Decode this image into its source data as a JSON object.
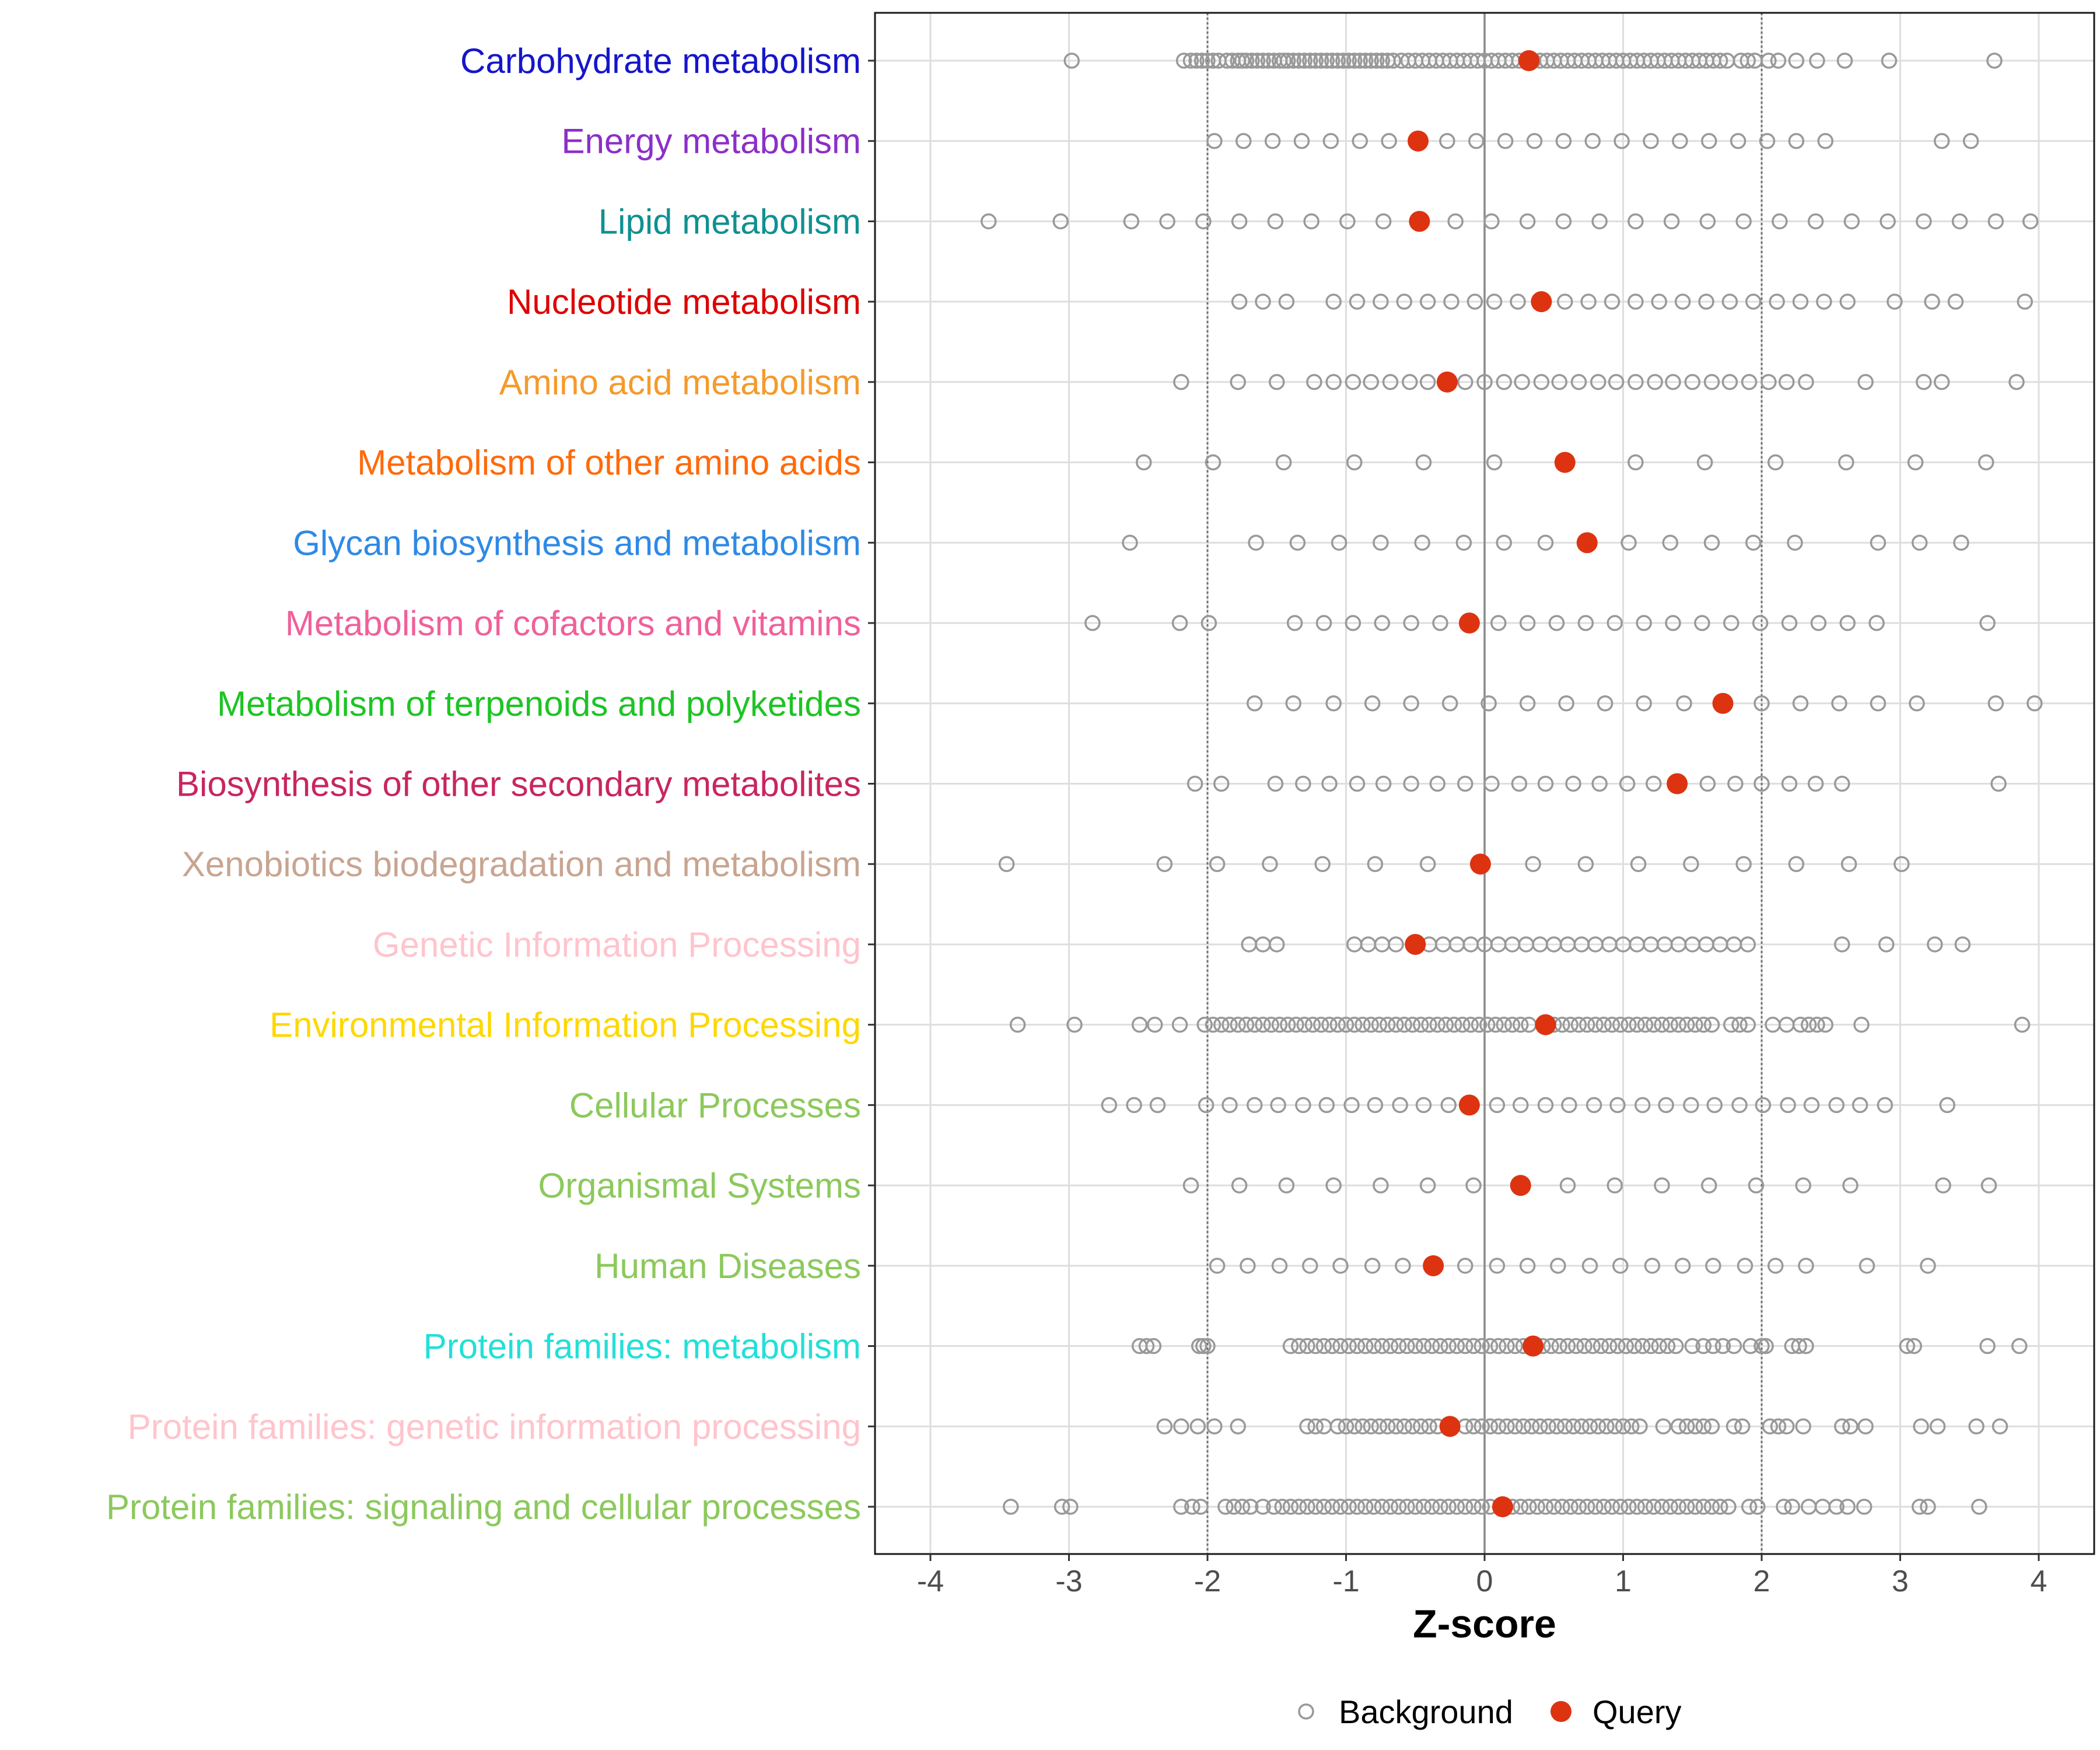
{
  "chart_data": {
    "type": "scatter",
    "xlabel": "Z-score",
    "xlim": [
      -4.4,
      4.4
    ],
    "xticks": [
      -4,
      -3,
      -2,
      -1,
      0,
      1,
      2,
      3,
      4
    ],
    "xtick_labels": [
      "-4",
      "-3",
      "-2",
      "-1",
      "0",
      "1",
      "2",
      "3",
      "4"
    ],
    "reference_lines": [
      {
        "x": -2,
        "style": "dotted"
      },
      {
        "x": 0,
        "style": "solid"
      },
      {
        "x": 2,
        "style": "dotted"
      }
    ],
    "grid": true,
    "legend": {
      "placement": "bottom",
      "entries": [
        {
          "name": "Background",
          "marker": "open-circle",
          "color": "#999999"
        },
        {
          "name": "Query",
          "marker": "filled-circle",
          "color": "#dd3311"
        }
      ]
    },
    "categories": [
      {
        "label": "Carbohydrate metabolism",
        "color": "#1515cc",
        "query": 0.32,
        "background_values": [
          -2.98,
          -2.17,
          -2.12,
          -2.08,
          -2.04,
          -2.0,
          -1.96,
          -1.92,
          -1.86,
          -1.82,
          -1.78,
          -1.75,
          -1.72,
          -1.68,
          -1.64,
          -1.6,
          -1.56,
          -1.52,
          -1.48,
          -1.45,
          -1.42,
          -1.38,
          -1.34,
          -1.3,
          -1.26,
          -1.22,
          -1.18,
          -1.14,
          -1.1,
          -1.06,
          -1.02,
          -0.98,
          -0.94,
          -0.9,
          -0.86,
          -0.82,
          -0.78,
          -0.74,
          -0.7,
          -0.66,
          -0.6,
          -0.55,
          -0.5,
          -0.45,
          -0.4,
          -0.35,
          -0.3,
          -0.25,
          -0.2,
          -0.15,
          -0.1,
          -0.05,
          0.0,
          0.05,
          0.1,
          0.15,
          0.2,
          0.25,
          0.3,
          0.35,
          0.4,
          0.45,
          0.5,
          0.55,
          0.6,
          0.65,
          0.7,
          0.75,
          0.8,
          0.85,
          0.9,
          0.95,
          1.0,
          1.05,
          1.1,
          1.15,
          1.2,
          1.25,
          1.3,
          1.35,
          1.4,
          1.45,
          1.5,
          1.55,
          1.6,
          1.65,
          1.7,
          1.75,
          1.85,
          1.9,
          1.95,
          2.05,
          2.12,
          2.25,
          2.4,
          2.6,
          2.92,
          3.68
        ]
      },
      {
        "label": "Energy metabolism",
        "color": "#8b2fc9",
        "query": -0.48,
        "background_values": [
          -1.95,
          -1.74,
          -1.53,
          -1.32,
          -1.11,
          -0.9,
          -0.69,
          -0.27,
          -0.06,
          0.15,
          0.36,
          0.57,
          0.78,
          0.99,
          1.2,
          1.41,
          1.62,
          1.83,
          2.04,
          2.25,
          2.46,
          3.3,
          3.51
        ]
      },
      {
        "label": "Lipid metabolism",
        "color": "#109090",
        "query": -0.47,
        "background_values": [
          -3.58,
          -3.06,
          -2.55,
          -2.29,
          -2.03,
          -1.77,
          -1.51,
          -1.25,
          -0.99,
          -0.73,
          -0.21,
          0.05,
          0.31,
          0.57,
          0.83,
          1.09,
          1.35,
          1.61,
          1.87,
          2.13,
          2.39,
          2.65,
          2.91,
          3.17,
          3.43,
          3.69,
          3.94
        ]
      },
      {
        "label": "Nucleotide metabolism",
        "color": "#dd0000",
        "query": 0.41,
        "background_values": [
          -1.77,
          -1.6,
          -1.43,
          -1.09,
          -0.92,
          -0.75,
          -0.58,
          -0.41,
          -0.24,
          -0.07,
          0.07,
          0.24,
          0.58,
          0.75,
          0.92,
          1.09,
          1.26,
          1.43,
          1.6,
          1.77,
          1.94,
          2.11,
          2.28,
          2.45,
          2.62,
          2.96,
          3.23,
          3.4,
          3.9
        ]
      },
      {
        "label": "Amino acid metabolism",
        "color": "#f59a2b",
        "query": -0.27,
        "background_values": [
          -2.19,
          -1.78,
          -1.5,
          -1.23,
          -1.09,
          -0.95,
          -0.82,
          -0.68,
          -0.54,
          -0.41,
          -0.14,
          0.0,
          0.14,
          0.27,
          0.41,
          0.54,
          0.68,
          0.82,
          0.95,
          1.09,
          1.23,
          1.36,
          1.5,
          1.64,
          1.77,
          1.91,
          2.05,
          2.18,
          2.32,
          2.75,
          3.17,
          3.3,
          3.84
        ]
      },
      {
        "label": "Metabolism of other amino acids",
        "color": "#ff6a0a",
        "query": 0.58,
        "background_values": [
          -2.46,
          -1.96,
          -1.45,
          -0.94,
          -0.44,
          0.07,
          1.09,
          1.59,
          2.1,
          2.61,
          3.11,
          3.62
        ]
      },
      {
        "label": "Glycan biosynthesis and metabolism",
        "color": "#2e8ae6",
        "query": 0.74,
        "background_values": [
          -2.56,
          -1.65,
          -1.35,
          -1.05,
          -0.75,
          -0.45,
          -0.15,
          0.14,
          0.44,
          1.04,
          1.34,
          1.64,
          1.94,
          2.24,
          2.84,
          3.14,
          3.44
        ]
      },
      {
        "label": "Metabolism of cofactors and vitamins",
        "color": "#f0609a",
        "query": -0.11,
        "background_values": [
          -2.83,
          -2.2,
          -1.99,
          -1.37,
          -1.16,
          -0.95,
          -0.74,
          -0.53,
          -0.32,
          0.1,
          0.31,
          0.52,
          0.73,
          0.94,
          1.15,
          1.36,
          1.57,
          1.78,
          1.99,
          2.2,
          2.41,
          2.62,
          2.83,
          3.63
        ]
      },
      {
        "label": "Metabolism of terpenoids and polyketides",
        "color": "#1dc424",
        "query": 1.72,
        "background_values": [
          -1.66,
          -1.38,
          -1.09,
          -0.81,
          -0.53,
          -0.25,
          0.03,
          0.31,
          0.59,
          0.87,
          1.15,
          1.44,
          2.0,
          2.28,
          2.56,
          2.84,
          3.12,
          3.69,
          3.97
        ]
      },
      {
        "label": "Biosynthesis of other secondary metabolites",
        "color": "#c82660",
        "query": 1.39,
        "background_values": [
          -2.09,
          -1.9,
          -1.51,
          -1.31,
          -1.12,
          -0.92,
          -0.73,
          -0.53,
          -0.34,
          -0.14,
          0.05,
          0.25,
          0.44,
          0.64,
          0.83,
          1.03,
          1.22,
          1.61,
          1.81,
          2.0,
          2.2,
          2.39,
          2.58,
          3.71
        ]
      },
      {
        "label": "Xenobiotics biodegradation and metabolism",
        "color": "#c8a591",
        "query": -0.03,
        "background_values": [
          -3.45,
          -2.31,
          -1.93,
          -1.55,
          -1.17,
          -0.79,
          -0.41,
          0.35,
          0.73,
          1.11,
          1.49,
          1.87,
          2.25,
          2.63,
          3.01
        ]
      },
      {
        "label": "Genetic Information Processing",
        "color": "#ffc4cc",
        "query": -0.5,
        "background_values": [
          -1.7,
          -1.6,
          -1.5,
          -0.94,
          -0.84,
          -0.74,
          -0.64,
          -0.4,
          -0.3,
          -0.2,
          -0.1,
          0.0,
          0.1,
          0.2,
          0.3,
          0.4,
          0.5,
          0.6,
          0.7,
          0.8,
          0.9,
          1.0,
          1.1,
          1.2,
          1.3,
          1.4,
          1.5,
          1.6,
          1.7,
          1.8,
          1.9,
          2.58,
          2.9,
          3.25,
          3.45
        ]
      },
      {
        "label": "Environmental Information Processing",
        "color": "#ffd700",
        "query": 0.44,
        "background_values": [
          -3.37,
          -2.96,
          -2.49,
          -2.38,
          -2.2,
          -2.02,
          -1.96,
          -1.9,
          -1.84,
          -1.78,
          -1.72,
          -1.66,
          -1.6,
          -1.54,
          -1.48,
          -1.42,
          -1.36,
          -1.3,
          -1.24,
          -1.18,
          -1.12,
          -1.06,
          -1.0,
          -0.94,
          -0.88,
          -0.82,
          -0.76,
          -0.7,
          -0.64,
          -0.58,
          -0.52,
          -0.46,
          -0.4,
          -0.34,
          -0.28,
          -0.22,
          -0.16,
          -0.1,
          -0.04,
          0.02,
          0.08,
          0.14,
          0.2,
          0.26,
          0.32,
          0.5,
          0.56,
          0.62,
          0.68,
          0.74,
          0.8,
          0.86,
          0.92,
          0.98,
          1.04,
          1.1,
          1.16,
          1.22,
          1.28,
          1.34,
          1.4,
          1.46,
          1.52,
          1.58,
          1.64,
          1.78,
          1.84,
          1.9,
          2.08,
          2.18,
          2.28,
          2.34,
          2.4,
          2.46,
          2.72,
          3.88
        ]
      },
      {
        "label": "Cellular Processes",
        "color": "#8cc95c",
        "query": -0.11,
        "background_values": [
          -2.71,
          -2.53,
          -2.36,
          -2.01,
          -1.84,
          -1.66,
          -1.49,
          -1.31,
          -1.14,
          -0.96,
          -0.79,
          -0.61,
          -0.44,
          -0.26,
          0.09,
          0.26,
          0.44,
          0.61,
          0.79,
          0.96,
          1.14,
          1.31,
          1.49,
          1.66,
          1.84,
          2.01,
          2.19,
          2.36,
          2.54,
          2.71,
          2.89,
          3.34
        ]
      },
      {
        "label": "Organismal Systems",
        "color": "#8cc95c",
        "query": 0.26,
        "background_values": [
          -2.12,
          -1.77,
          -1.43,
          -1.09,
          -0.75,
          -0.41,
          -0.08,
          0.6,
          0.94,
          1.28,
          1.62,
          1.96,
          2.3,
          2.64,
          3.31,
          3.64
        ]
      },
      {
        "label": "Human Diseases",
        "color": "#8cc95c",
        "query": -0.37,
        "background_values": [
          -1.93,
          -1.71,
          -1.48,
          -1.26,
          -1.04,
          -0.81,
          -0.59,
          -0.14,
          0.09,
          0.31,
          0.53,
          0.76,
          0.98,
          1.21,
          1.43,
          1.65,
          1.88,
          2.1,
          2.32,
          2.76,
          3.2
        ]
      },
      {
        "label": "Protein families: metabolism",
        "color": "#22e0d8",
        "query": 0.35,
        "background_values": [
          -2.49,
          -2.44,
          -2.39,
          -2.06,
          -2.03,
          -2.0,
          -1.4,
          -1.34,
          -1.28,
          -1.22,
          -1.16,
          -1.1,
          -1.04,
          -0.98,
          -0.92,
          -0.86,
          -0.8,
          -0.74,
          -0.68,
          -0.62,
          -0.56,
          -0.5,
          -0.44,
          -0.38,
          -0.32,
          -0.26,
          -0.2,
          -0.14,
          -0.08,
          -0.02,
          0.04,
          0.1,
          0.16,
          0.22,
          0.28,
          0.42,
          0.48,
          0.54,
          0.6,
          0.66,
          0.72,
          0.78,
          0.84,
          0.9,
          0.96,
          1.02,
          1.08,
          1.14,
          1.2,
          1.26,
          1.32,
          1.38,
          1.5,
          1.58,
          1.65,
          1.72,
          1.8,
          1.92,
          2.0,
          2.03,
          2.22,
          2.27,
          2.32,
          3.05,
          3.1,
          3.63,
          3.86
        ]
      },
      {
        "label": "Protein families: genetic information processing",
        "color": "#ffc4cc",
        "query": -0.25,
        "background_values": [
          -2.31,
          -2.19,
          -2.07,
          -1.95,
          -1.78,
          -1.28,
          -1.22,
          -1.16,
          -1.06,
          -1.0,
          -0.94,
          -0.88,
          -0.82,
          -0.76,
          -0.7,
          -0.64,
          -0.58,
          -0.52,
          -0.46,
          -0.4,
          -0.34,
          -0.14,
          -0.08,
          -0.02,
          0.04,
          0.1,
          0.16,
          0.22,
          0.28,
          0.34,
          0.4,
          0.46,
          0.52,
          0.58,
          0.64,
          0.7,
          0.76,
          0.82,
          0.88,
          0.94,
          1.0,
          1.06,
          1.12,
          1.29,
          1.4,
          1.46,
          1.52,
          1.58,
          1.64,
          1.8,
          1.86,
          2.06,
          2.12,
          2.18,
          2.3,
          2.58,
          2.64,
          2.75,
          3.15,
          3.27,
          3.55,
          3.72
        ]
      },
      {
        "label": "Protein families: signaling and cellular processes",
        "color": "#8cc95c",
        "query": 0.13,
        "background_values": [
          -3.42,
          -3.05,
          -2.99,
          -2.19,
          -2.11,
          -2.05,
          -1.87,
          -1.81,
          -1.75,
          -1.69,
          -1.6,
          -1.52,
          -1.46,
          -1.4,
          -1.34,
          -1.28,
          -1.22,
          -1.16,
          -1.1,
          -1.04,
          -0.98,
          -0.92,
          -0.86,
          -0.8,
          -0.74,
          -0.68,
          -0.62,
          -0.56,
          -0.5,
          -0.44,
          -0.38,
          -0.32,
          -0.26,
          -0.2,
          -0.14,
          -0.08,
          -0.02,
          0.04,
          0.2,
          0.26,
          0.32,
          0.38,
          0.44,
          0.5,
          0.56,
          0.62,
          0.68,
          0.74,
          0.8,
          0.86,
          0.92,
          0.98,
          1.04,
          1.1,
          1.16,
          1.22,
          1.28,
          1.34,
          1.4,
          1.46,
          1.52,
          1.58,
          1.64,
          1.7,
          1.76,
          1.91,
          1.97,
          2.16,
          2.22,
          2.34,
          2.44,
          2.54,
          2.62,
          2.74,
          3.14,
          3.2,
          3.57
        ]
      }
    ]
  }
}
